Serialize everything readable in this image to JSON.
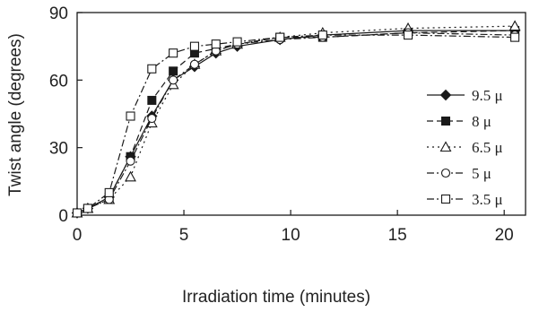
{
  "chart_data": {
    "type": "line",
    "xlabel": "Irradiation time (minutes)",
    "ylabel": "Twist angle (degrees)",
    "xlim": [
      0,
      21
    ],
    "ylim": [
      0,
      90
    ],
    "xticks": [
      0,
      5,
      10,
      15,
      20
    ],
    "yticks": [
      0,
      30,
      60,
      90
    ],
    "grid": false,
    "legend_position": "right",
    "series": [
      {
        "name": "9.5 μ",
        "marker": "diamond",
        "dash": "solid",
        "x": [
          0,
          0.5,
          1.5,
          2.5,
          3.5,
          4.5,
          5.5,
          6.5,
          7.5,
          9.5,
          11.5,
          15.5,
          20.5
        ],
        "y": [
          1,
          3,
          8,
          26,
          44,
          60,
          66,
          72,
          75,
          78,
          80,
          82,
          82
        ]
      },
      {
        "name": "8 μ",
        "marker": "square-filled",
        "dash": "longdash",
        "x": [
          0,
          0.5,
          1.5,
          2.5,
          3.5,
          4.5,
          5.5,
          6.5,
          7.5,
          9.5,
          11.5,
          15.5,
          20.5
        ],
        "y": [
          1,
          3,
          8,
          26,
          51,
          64,
          72,
          74,
          76,
          79,
          79,
          81,
          82
        ]
      },
      {
        "name": "6.5 μ",
        "marker": "triangle-open",
        "dash": "dotted",
        "x": [
          0,
          0.5,
          1.5,
          2.5,
          3.5,
          4.5,
          5.5,
          6.5,
          7.5,
          9.5,
          11.5,
          15.5,
          20.5
        ],
        "y": [
          1,
          3,
          7,
          17,
          41,
          58,
          67,
          73,
          76,
          79,
          81,
          83,
          84
        ]
      },
      {
        "name": "5 μ",
        "marker": "circle-open",
        "dash": "dashdot",
        "x": [
          0,
          0.5,
          1.5,
          2.5,
          3.5,
          4.5,
          5.5,
          6.5,
          7.5,
          9.5,
          11.5,
          15.5,
          20.5
        ],
        "y": [
          1,
          3,
          7,
          24,
          43,
          60,
          67,
          73,
          76,
          78,
          79,
          81,
          80
        ]
      },
      {
        "name": "3.5 μ",
        "marker": "square-open",
        "dash": "dashdot",
        "x": [
          0,
          0.5,
          1.5,
          2.5,
          3.5,
          4.5,
          5.5,
          6.5,
          7.5,
          9.5,
          11.5,
          15.5,
          20.5
        ],
        "y": [
          1,
          3,
          10,
          44,
          65,
          72,
          75,
          76,
          77,
          79,
          80,
          80,
          79
        ]
      }
    ]
  },
  "colors": {
    "ink": "#1a1a1a"
  }
}
